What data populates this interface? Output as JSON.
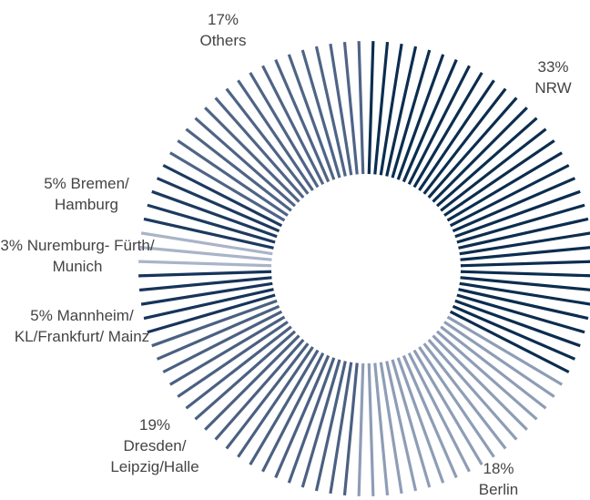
{
  "chart_data": {
    "type": "pie",
    "categories": [
      "NRW",
      "Berlin",
      "Dresden/ Leipzig/Halle",
      "Mannheim/ KL/Frankfurt/ Mainz",
      "Nuremburg- Fürth/ Munich",
      "Bremen/ Hamburg",
      "Others"
    ],
    "values": [
      33,
      18,
      19,
      5,
      3,
      5,
      17
    ],
    "value_labels": [
      "33%",
      "18%",
      "19%",
      "5%",
      "3%",
      "5%",
      "17%"
    ],
    "colors": [
      "#0b2d4f",
      "#8e9db6",
      "#4b6082",
      "#17345a",
      "#a9b4c7",
      "#1c3a5f",
      "#4f6486"
    ]
  }
}
